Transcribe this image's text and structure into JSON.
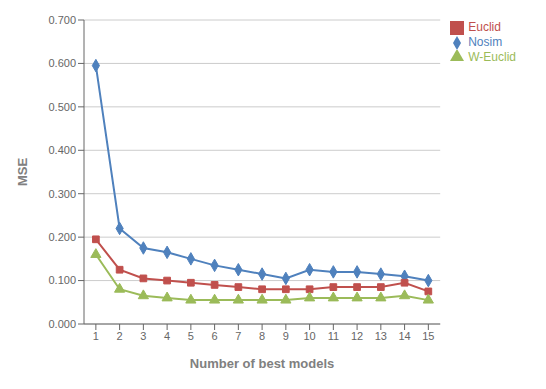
{
  "chart_data": {
    "type": "line",
    "x": [
      1,
      2,
      3,
      4,
      5,
      6,
      7,
      8,
      9,
      10,
      11,
      12,
      13,
      14,
      15
    ],
    "series": [
      {
        "name": "Nosim",
        "color": "#4f81bd",
        "marker": "diamond",
        "values": [
          0.595,
          0.22,
          0.175,
          0.165,
          0.15,
          0.135,
          0.125,
          0.115,
          0.105,
          0.125,
          0.12,
          0.12,
          0.115,
          0.11,
          0.1
        ]
      },
      {
        "name": "Euclid",
        "color": "#c0504d",
        "marker": "square",
        "values": [
          0.195,
          0.125,
          0.105,
          0.1,
          0.095,
          0.09,
          0.085,
          0.08,
          0.08,
          0.08,
          0.085,
          0.085,
          0.085,
          0.095,
          0.075
        ]
      },
      {
        "name": "W-Euclid",
        "color": "#9bbb59",
        "marker": "triangle",
        "values": [
          0.16,
          0.08,
          0.065,
          0.06,
          0.055,
          0.055,
          0.055,
          0.055,
          0.055,
          0.06,
          0.06,
          0.06,
          0.06,
          0.065,
          0.055
        ]
      }
    ],
    "x_label": "Number of best models",
    "y_label": "MSE",
    "xlim": [
      0.5,
      15.5
    ],
    "xticks": [
      1,
      2,
      3,
      4,
      5,
      6,
      7,
      8,
      9,
      10,
      11,
      12,
      13,
      14,
      15
    ],
    "ylim": [
      0.0,
      0.7
    ],
    "yticks": [
      {
        "value": 0.0,
        "label": "0.000"
      },
      {
        "value": 0.1,
        "label": "0.100"
      },
      {
        "value": 0.2,
        "label": "0.200"
      },
      {
        "value": 0.3,
        "label": "0.300"
      },
      {
        "value": 0.4,
        "label": "0.400"
      },
      {
        "value": 0.5,
        "label": "0.500"
      },
      {
        "value": 0.6,
        "label": "0.600"
      },
      {
        "value": 0.7,
        "label": "0.700"
      }
    ],
    "grid": true,
    "legend": "upper right"
  }
}
